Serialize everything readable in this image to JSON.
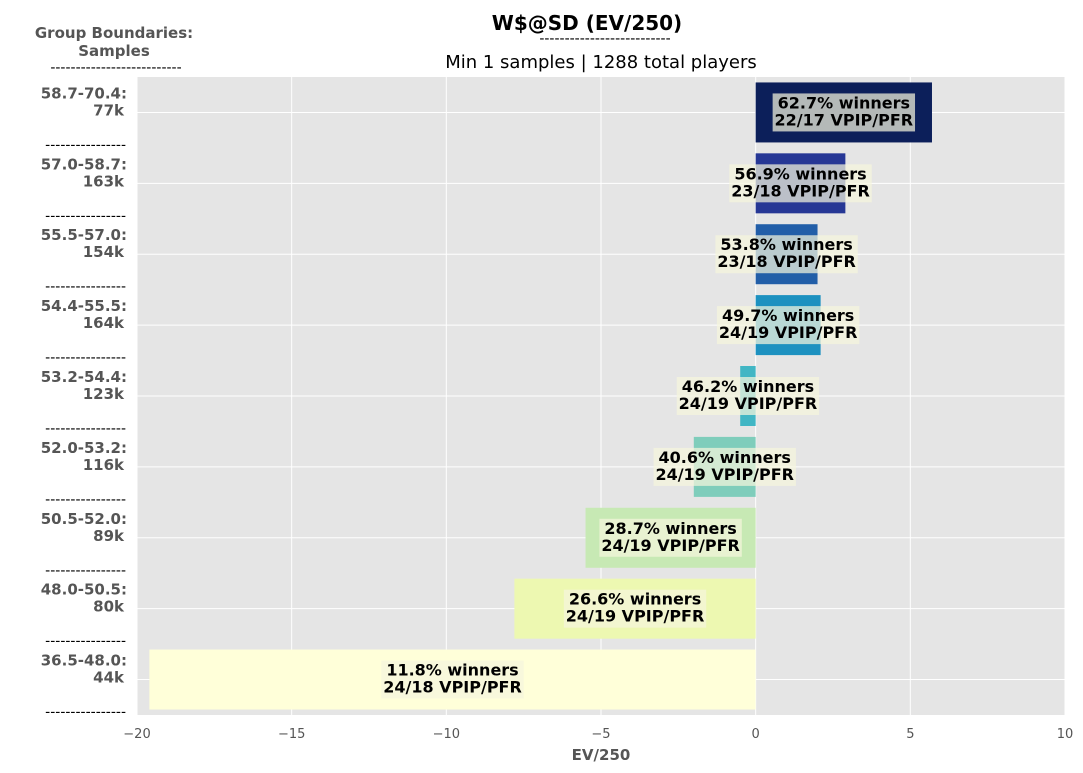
{
  "chart_data": {
    "type": "bar",
    "orientation": "horizontal",
    "title": "W$@SD (EV/250)",
    "subtitle": "Min 1 samples | 1288 total players",
    "xlabel": "EV/250",
    "ylabel_header": [
      "Group Boundaries:",
      "Samples"
    ],
    "xlim": [
      -20,
      10
    ],
    "xticks": [
      -20,
      -15,
      -10,
      -5,
      0,
      5,
      10
    ],
    "xtick_labels": [
      "−20",
      "−15",
      "−10",
      "−5",
      "0",
      "5",
      "10"
    ],
    "grid": true,
    "categories": [
      {
        "range": "58.7-70.4:",
        "samples": "77k"
      },
      {
        "range": "57.0-58.7:",
        "samples": "163k"
      },
      {
        "range": "55.5-57.0:",
        "samples": "154k"
      },
      {
        "range": "54.4-55.5:",
        "samples": "164k"
      },
      {
        "range": "53.2-54.4:",
        "samples": "123k"
      },
      {
        "range": "52.0-53.2:",
        "samples": "116k"
      },
      {
        "range": "50.5-52.0:",
        "samples": "89k"
      },
      {
        "range": "48.0-50.5:",
        "samples": "80k"
      },
      {
        "range": "36.5-48.0:",
        "samples": "44k"
      }
    ],
    "values": [
      5.7,
      2.9,
      2.0,
      2.1,
      -0.5,
      -2.0,
      -5.5,
      -7.8,
      -19.6
    ],
    "bar_labels": [
      [
        "62.7% winners",
        "22/17 VPIP/PFR"
      ],
      [
        "56.9% winners",
        "23/18 VPIP/PFR"
      ],
      [
        "53.8% winners",
        "23/18 VPIP/PFR"
      ],
      [
        "49.7% winners",
        "24/19 VPIP/PFR"
      ],
      [
        "46.2% winners",
        "24/19 VPIP/PFR"
      ],
      [
        "40.6% winners",
        "24/19 VPIP/PFR"
      ],
      [
        "28.7% winners",
        "24/19 VPIP/PFR"
      ],
      [
        "26.6% winners",
        "24/19 VPIP/PFR"
      ],
      [
        "11.8% winners",
        "24/18 VPIP/PFR"
      ]
    ],
    "bar_colors": [
      "#0c1f5a",
      "#263795",
      "#225ea8",
      "#1d91c0",
      "#41b6c4",
      "#7fcdbb",
      "#c7e9b4",
      "#edf8b1",
      "#ffffd9"
    ],
    "separator": "----------------"
  }
}
